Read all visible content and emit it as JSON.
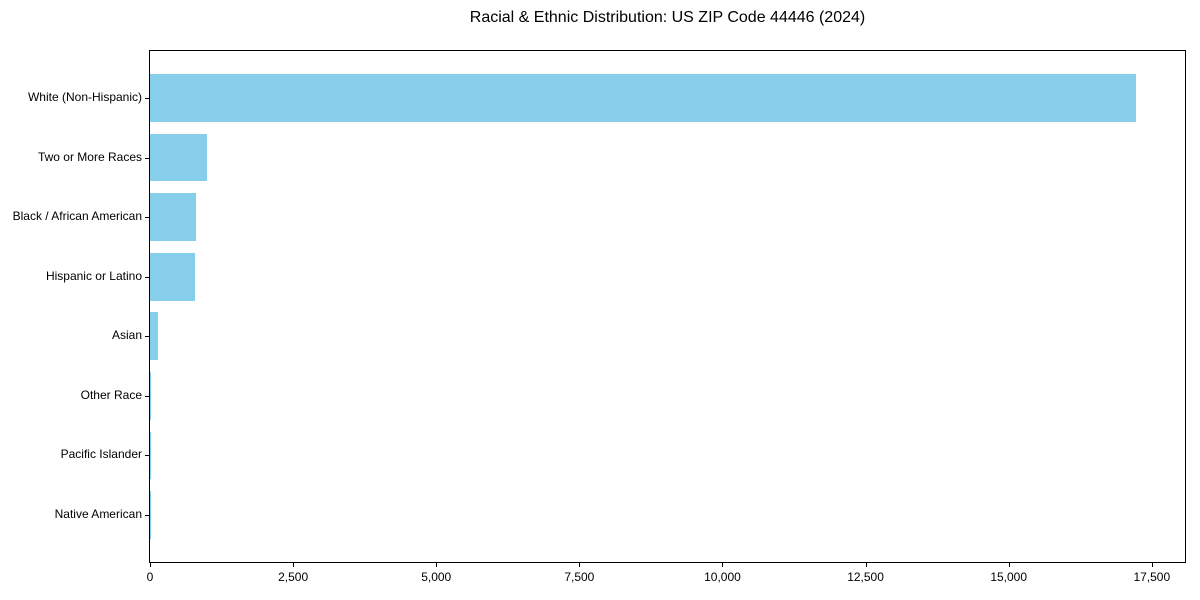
{
  "title": "Racial & Ethnic Distribution: US ZIP Code 44446 (2024)",
  "chart_data": {
    "type": "bar",
    "orientation": "horizontal",
    "title": "Racial & Ethnic Distribution: US ZIP Code 44446 (2024)",
    "xlabel": "",
    "ylabel": "",
    "categories": [
      "White (Non-Hispanic)",
      "Two or More Races",
      "Black / African American",
      "Hispanic or Latino",
      "Asian",
      "Other Race",
      "Pacific Islander",
      "Native American"
    ],
    "values": [
      17220,
      1000,
      800,
      785,
      140,
      20,
      10,
      5
    ],
    "xlim": [
      0,
      18080
    ],
    "x_ticks": [
      0,
      2500,
      5000,
      7500,
      10000,
      12500,
      15000,
      17500
    ],
    "x_tick_labels": [
      "0",
      "2,500",
      "5,000",
      "7,500",
      "10,000",
      "12,500",
      "15,000",
      "17,500"
    ],
    "grid": false,
    "legend": null,
    "bar_color": "#87ceeb",
    "axis_color": "#000000",
    "text_color": "#000000",
    "background_color": "#ffffff"
  }
}
